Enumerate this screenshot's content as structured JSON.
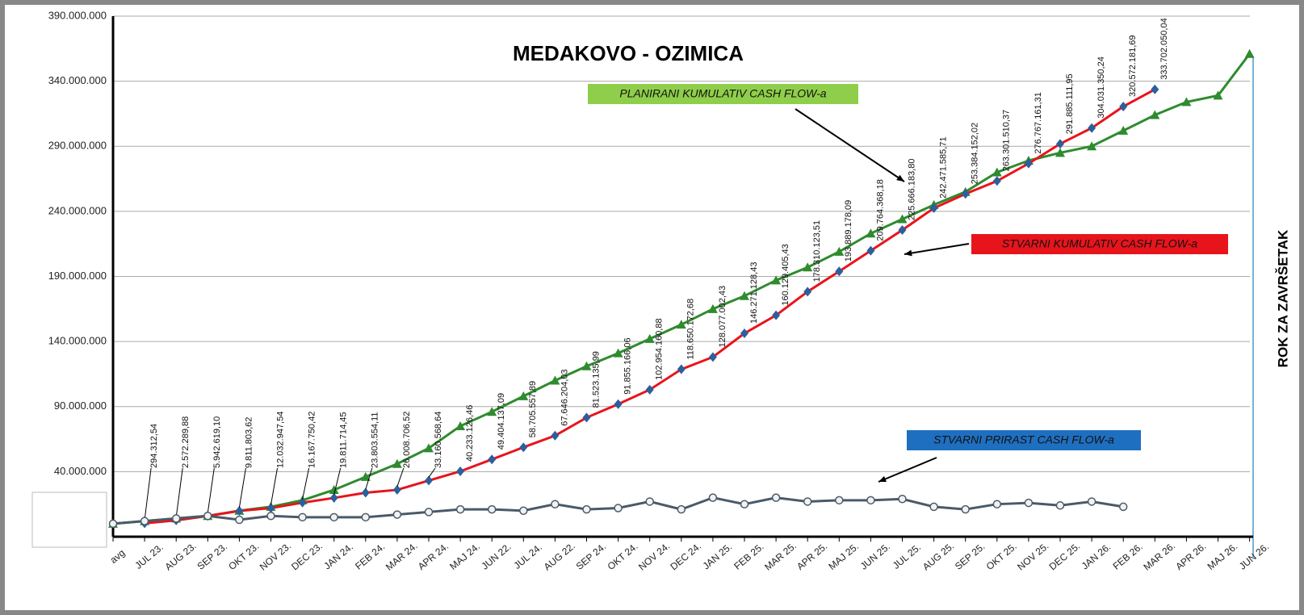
{
  "chart_data": {
    "type": "line",
    "title": "MEDAKOVO - OZIMICA",
    "annotation": "ROK ZA ZAVRŠETAK",
    "categories": [
      "avg",
      "JUL 23.",
      "AUG 23.",
      "SEP 23.",
      "OKT 23.",
      "NOV 23.",
      "DEC 23.",
      "JAN 24.",
      "FEB 24.",
      "MAR 24.",
      "APR 24.",
      "MAJ 24.",
      "JUN 22.",
      "JUL 24.",
      "AUG 22.",
      "SEP 24.",
      "OKT 24.",
      "NOV 24.",
      "DEC 24.",
      "JAN 25.",
      "FEB 25.",
      "MAR 25.",
      "APR 25.",
      "MAJ 25.",
      "JUN 25.",
      "JUL 25.",
      "AUG 25.",
      "SEP 25.",
      "OKT 25.",
      "NOV 25.",
      "DEC 25.",
      "JAN 26.",
      "FEB 26.",
      "MAR 26.",
      "APR 26.",
      "MAJ 26.",
      "JUN 26."
    ],
    "ylim": [
      -10000000,
      390000000
    ],
    "yticks": [
      {
        "value": 40000000,
        "label": "40.000.000"
      },
      {
        "value": 90000000,
        "label": "90.000.000"
      },
      {
        "value": 140000000,
        "label": "140.000.000"
      },
      {
        "value": 190000000,
        "label": "190.000.000"
      },
      {
        "value": 240000000,
        "label": "240.000.000"
      },
      {
        "value": 290000000,
        "label": "290.000.000"
      },
      {
        "value": 340000000,
        "label": "340.000.000"
      },
      {
        "value": 390000000,
        "label": "390.000.000"
      }
    ],
    "grid": true,
    "series": [
      {
        "name": "PLANIRANI KUMULATIV CASH FLOW-a",
        "color": "#2e8b2e",
        "marker": "triangle",
        "values": [
          0,
          2000000,
          4000000,
          6000000,
          10000000,
          13000000,
          18000000,
          26000000,
          36000000,
          46000000,
          58000000,
          75000000,
          86000000,
          98000000,
          110000000,
          121000000,
          131000000,
          142000000,
          153000000,
          165000000,
          175000000,
          187000000,
          197000000,
          209000000,
          223000000,
          234000000,
          245000000,
          255000000,
          270000000,
          279000000,
          285000000,
          290000000,
          302000000,
          314000000,
          324000000,
          329000000,
          361000000
        ]
      },
      {
        "name": "STVARNI KUMULATIV CASH FLOW-a",
        "color": "#e8141c",
        "marker": "diamond",
        "values": [
          null,
          294312.54,
          2572289.88,
          5942619.1,
          9811803.62,
          12032947.54,
          16167750.42,
          19811714.45,
          23803554.11,
          26008706.52,
          33160568.64,
          40233126.46,
          49404137.09,
          58705557.89,
          67646204.03,
          81523135.99,
          91855166.06,
          102954160.88,
          118650172.68,
          128077002.43,
          146271128.43,
          160129405.43,
          178310123.51,
          193889178.09,
          209764368.18,
          225666183.8,
          242471585.71,
          253384152.02,
          263301510.37,
          276767161.31,
          291885111.95,
          304031350.24,
          320572181.69,
          333702050.04,
          null,
          null,
          null
        ],
        "value_labels": [
          null,
          "294.312,54",
          "2.572.289,88",
          "5.942.619,10",
          "9.811.803,62",
          "12.032.947,54",
          "16.167.750,42",
          "19.811.714,45",
          "23.803.554,11",
          "26.008.706,52",
          "33.160.568,64",
          "40.233.126,46",
          "49.404.137,09",
          "58.705.557,89",
          "67.646.204,03",
          "81.523.135,99",
          "91.855.166,06",
          "102.954.160,88",
          "118.650.172,68",
          "128.077.002,43",
          "146.271.128,43",
          "160.129.405,43",
          "178.310.123,51",
          "193.889.178,09",
          "209.764.368,18",
          "225.666.183,80",
          "242.471.585,71",
          "253.384.152,02",
          "263.301.510,37",
          "276.767.161,31",
          "291.885.111,95",
          "304.031.350,24",
          "320.572.181,69",
          "333.702.050,04",
          null,
          null,
          null
        ]
      },
      {
        "name": "STVARNI PRIRAST CASH FLOW-a",
        "color": "#4a5a6a",
        "marker": "circle",
        "values": [
          0,
          2000000,
          4000000,
          6000000,
          3000000,
          6000000,
          5000000,
          5000000,
          5000000,
          7000000,
          9000000,
          11000000,
          11000000,
          10000000,
          15000000,
          11000000,
          12000000,
          17000000,
          11000000,
          20000000,
          15000000,
          20000000,
          17000000,
          18000000,
          18000000,
          19000000,
          13000000,
          11000000,
          15000000,
          16000000,
          14000000,
          17000000,
          13000000,
          null,
          null,
          null,
          null
        ]
      }
    ]
  }
}
